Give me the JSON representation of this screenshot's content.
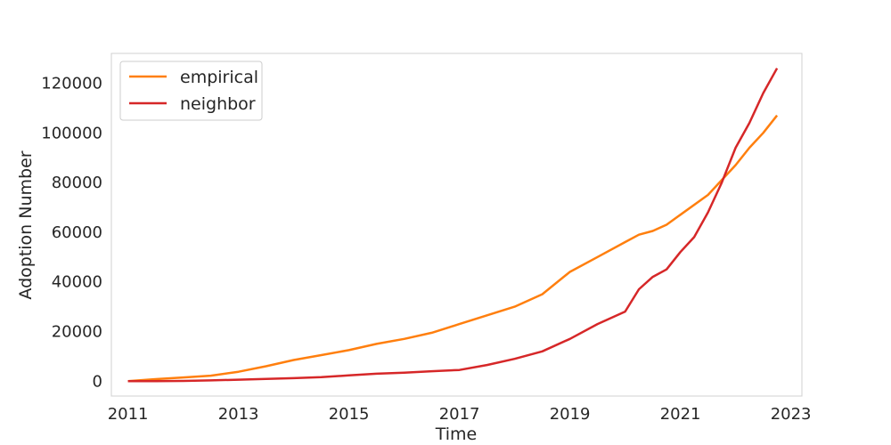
{
  "chart_data": {
    "type": "line",
    "xlabel": "Time",
    "ylabel": "Adoption Number",
    "xlim": [
      2010.7,
      2023.2
    ],
    "ylim": [
      -6000,
      132000
    ],
    "x_ticks": [
      2011,
      2013,
      2015,
      2017,
      2019,
      2021,
      2023
    ],
    "y_ticks": [
      0,
      20000,
      40000,
      60000,
      80000,
      100000,
      120000
    ],
    "grid": false,
    "legend": {
      "placement": "top-left",
      "entries": [
        "empirical",
        "neighbor"
      ]
    },
    "series": [
      {
        "name": "empirical",
        "color": "#ff7f0e",
        "x": [
          2011.0,
          2011.5,
          2012.0,
          2012.5,
          2013.0,
          2013.5,
          2014.0,
          2014.5,
          2015.0,
          2015.5,
          2016.0,
          2016.5,
          2017.0,
          2017.5,
          2018.0,
          2018.5,
          2019.0,
          2019.5,
          2020.0,
          2020.25,
          2020.5,
          2020.75,
          2021.0,
          2021.5,
          2022.0,
          2022.25,
          2022.5,
          2022.75
        ],
        "values": [
          0,
          800,
          1500,
          2200,
          3800,
          6000,
          8500,
          10500,
          12500,
          15000,
          17000,
          19500,
          23000,
          26500,
          30000,
          35000,
          44000,
          50000,
          56000,
          59000,
          60500,
          63000,
          67000,
          75000,
          87000,
          94000,
          100000,
          107000
        ]
      },
      {
        "name": "neighbor",
        "color": "#d62728",
        "x": [
          2011.0,
          2011.5,
          2012.0,
          2012.5,
          2013.0,
          2013.5,
          2014.0,
          2014.5,
          2015.0,
          2015.5,
          2016.0,
          2016.5,
          2017.0,
          2017.5,
          2018.0,
          2018.5,
          2019.0,
          2019.5,
          2020.0,
          2020.25,
          2020.5,
          2020.75,
          2021.0,
          2021.25,
          2021.5,
          2021.75,
          2022.0,
          2022.25,
          2022.5,
          2022.75
        ],
        "values": [
          0,
          0,
          100,
          300,
          600,
          900,
          1200,
          1600,
          2300,
          3000,
          3400,
          4000,
          4500,
          6500,
          9000,
          12000,
          17000,
          23000,
          28000,
          37000,
          42000,
          45000,
          52000,
          58000,
          68000,
          80000,
          94000,
          104000,
          116000,
          126000
        ]
      }
    ]
  }
}
